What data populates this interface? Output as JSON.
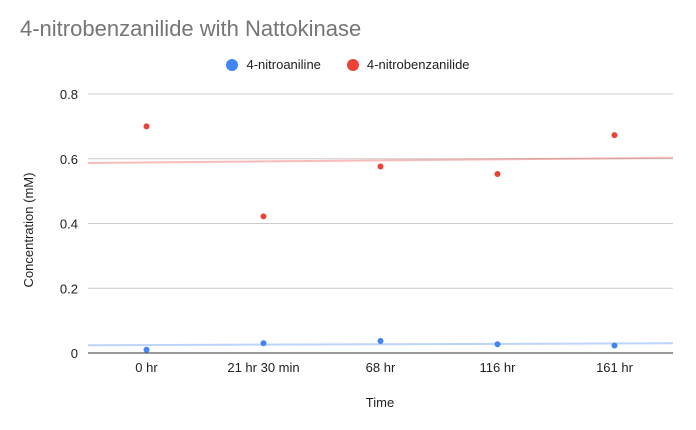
{
  "chart_data": {
    "type": "scatter",
    "title": "4-nitrobenzanilide with Nattokinase",
    "xlabel": "Time",
    "ylabel": "Concentration (mM)",
    "categories": [
      "0 hr",
      "21 hr 30 min",
      "68 hr",
      "116 hr",
      "161 hr"
    ],
    "ylim": [
      0,
      0.8
    ],
    "yticks": [
      "0",
      "0.2",
      "0.4",
      "0.6",
      "0.8"
    ],
    "grid": true,
    "legend_position": "top",
    "series": [
      {
        "name": "4-nitroaniline",
        "color": "#4285f4",
        "values": [
          0.01,
          0.03,
          0.037,
          0.027,
          0.023
        ],
        "trendline": [
          0.024,
          0.03
        ]
      },
      {
        "name": "4-nitrobenzanilide",
        "color": "#ea4335",
        "values": [
          0.7,
          0.422,
          0.576,
          0.553,
          0.673
        ],
        "trendline": [
          0.587,
          0.603
        ]
      }
    ]
  }
}
